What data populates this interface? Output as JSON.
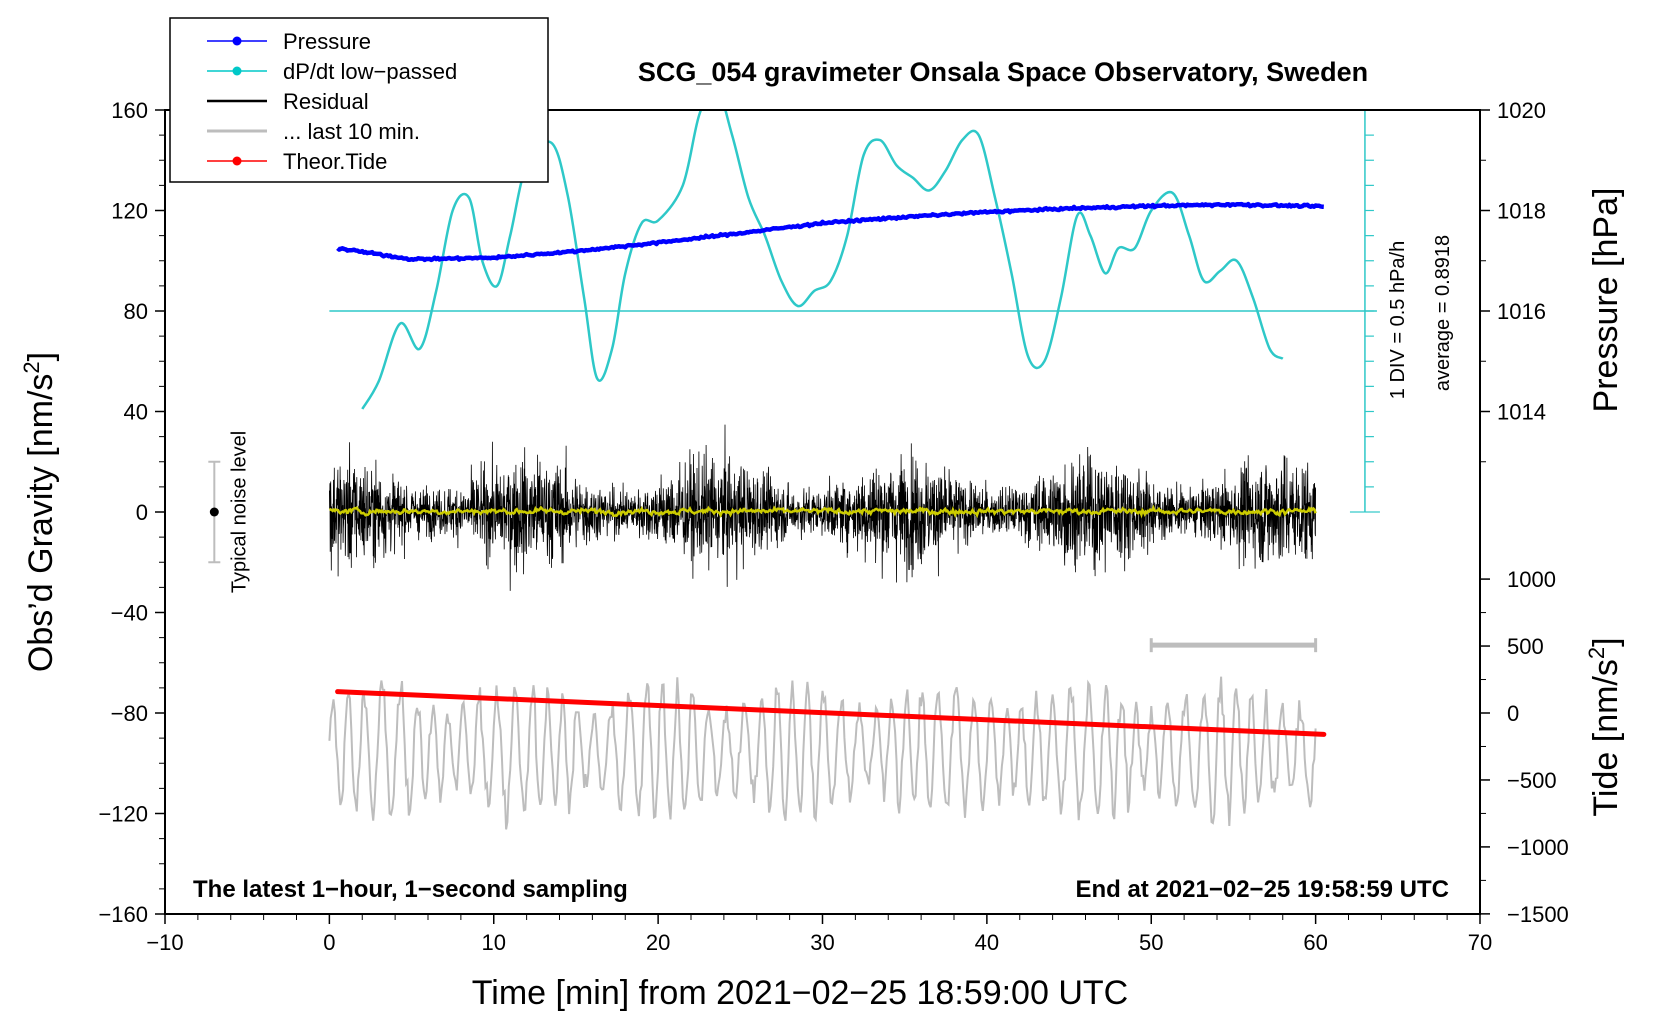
{
  "chart_data": {
    "type": "line",
    "title": "SCG_054 gravimeter Onsala Space Observatory, Sweden",
    "xlabel": "Time [min] from 2021−02−25 18:59:00 UTC",
    "ylabel": "Obs’d Gravity [nm/s²]",
    "ylabel_parts": {
      "main": "Obs’d Gravity [nm/s",
      "sup": "2",
      "close": "]"
    },
    "xlim": [
      -10,
      70
    ],
    "ylim": [
      -160,
      160
    ],
    "xticks": [
      -10,
      0,
      10,
      20,
      30,
      40,
      50,
      60,
      70
    ],
    "xtick_labels": [
      "−10",
      "0",
      "10",
      "20",
      "30",
      "40",
      "50",
      "60",
      "70"
    ],
    "yticks": [
      -160,
      -120,
      -80,
      -40,
      0,
      40,
      80,
      120,
      160
    ],
    "ytick_labels": [
      "−160",
      "−120",
      "−80",
      "−40",
      "0",
      "40",
      "80",
      "120",
      "160"
    ],
    "right_axis_pressure": {
      "label": "Pressure [hPa]",
      "ticks": [
        1014,
        1016,
        1018,
        1020
      ],
      "tick_labels": [
        "1014",
        "1016",
        "1018",
        "1020"
      ],
      "grav_at_1014": 40,
      "grav_per_hPa": 20
    },
    "right_axis_tide": {
      "label_parts": {
        "main": "Tide [nm/s",
        "sup": "2",
        "close": "]"
      },
      "ticks": [
        1000,
        500,
        0,
        -500,
        -1000,
        -1500
      ],
      "tick_labels": [
        "1000",
        "500",
        "0",
        "−500",
        "−1000",
        "−1500"
      ],
      "grav_at_0": -80,
      "grav_per_unit": 0.0533
    },
    "footer_left": "The latest 1−hour, 1−second sampling",
    "footer_right": "End at 2021−02−25 19:58:59 UTC",
    "noise_level": {
      "label": "Typical noise level",
      "x": -7,
      "center": 0,
      "half_range": 20
    },
    "dpdt_scale": {
      "div_label": "1 DIV = 0.5 hPa/h",
      "avg_label": "average = 0.8918",
      "x": 63,
      "ymin": 0,
      "ymax": 160,
      "ref_line_y": 80,
      "ref_line_x": [
        0,
        63
      ]
    },
    "last10_bar": {
      "x": [
        50,
        60
      ],
      "y": -53
    },
    "legend": [
      {
        "label": "Pressure",
        "color": "#0000ff",
        "marker": true
      },
      {
        "label": "dP/dt low−passed",
        "color": "#00c8c8",
        "marker": true
      },
      {
        "label": "Residual",
        "color": "#000000",
        "marker": false
      },
      {
        "label": "... last 10 min.",
        "color": "#bdbdbd",
        "marker": false
      },
      {
        "label": "Theor.Tide",
        "color": "#ff0000",
        "marker": true
      }
    ],
    "series": [
      {
        "name": "Pressure",
        "color": "#0000ff",
        "axis": "pressure_hPa",
        "x": [
          0.5,
          5,
          10,
          15,
          20,
          25,
          30,
          35,
          40,
          45,
          50,
          55,
          60.5
        ],
        "values": [
          1017.25,
          1017.03,
          1017.06,
          1017.19,
          1017.36,
          1017.55,
          1017.75,
          1017.87,
          1017.97,
          1018.04,
          1018.09,
          1018.12,
          1018.08
        ]
      },
      {
        "name": "dP/dt low−passed",
        "color": "#2ec8c8",
        "axis": "gravity",
        "x": [
          2,
          3,
          4.3,
          5.5,
          6.5,
          7.5,
          8.5,
          9.3,
          10.2,
          11,
          12,
          13.5,
          14.5,
          15.5,
          16.3,
          17.2,
          18,
          19,
          20,
          21.5,
          22.5,
          23.5,
          24.5,
          25.5,
          26.5,
          27.5,
          28.5,
          29.5,
          30.5,
          31.5,
          32.5,
          33.5,
          34.5,
          35.5,
          36.5,
          37.5,
          38.5,
          39.5,
          40.5,
          41.5,
          42.5,
          43.5,
          44.5,
          45.5,
          46.3,
          47.2,
          48,
          49,
          50,
          51.3,
          52.3,
          53.2,
          54.2,
          55.2,
          56.2,
          57.2,
          58
        ],
        "values": [
          41,
          52,
          75,
          65,
          88,
          120,
          125,
          100,
          90,
          110,
          138,
          147,
          126,
          85,
          53,
          65,
          95,
          115,
          116,
          130,
          158,
          170,
          150,
          125,
          110,
          92,
          82,
          88,
          92,
          110,
          142,
          148,
          138,
          133,
          128,
          136,
          148,
          150,
          125,
          95,
          62,
          60,
          85,
          118,
          110,
          95,
          105,
          105,
          120,
          127,
          110,
          92,
          96,
          100,
          85,
          65,
          61
        ]
      },
      {
        "name": "Residual",
        "color": "#000000",
        "axis": "gravity",
        "x_range": [
          0,
          60
        ],
        "samples": 3600,
        "typical_amplitude": 30,
        "min": -58,
        "max": 62,
        "note": "noise trace shown at one-second sampling"
      },
      {
        "name": "Residual smoothed",
        "color": "#cccc00",
        "axis": "gravity",
        "x_range": [
          0,
          60
        ],
        "typical_amplitude": 2,
        "note": "low-passed residual near zero"
      },
      {
        "name": "... last 10 min.",
        "color": "#bdbdbd",
        "axis": "gravity",
        "x_range": [
          0,
          60
        ],
        "center": -95,
        "typical_amplitude": 25,
        "min": -140,
        "max": -53,
        "note": "last 10 minutes of residual, replotted across the full time axis"
      },
      {
        "name": "Theor.Tide",
        "color": "#ff0000",
        "axis": "gravity",
        "x": [
          0.5,
          60.5
        ],
        "values": [
          -71.5,
          -88.5
        ]
      }
    ]
  }
}
